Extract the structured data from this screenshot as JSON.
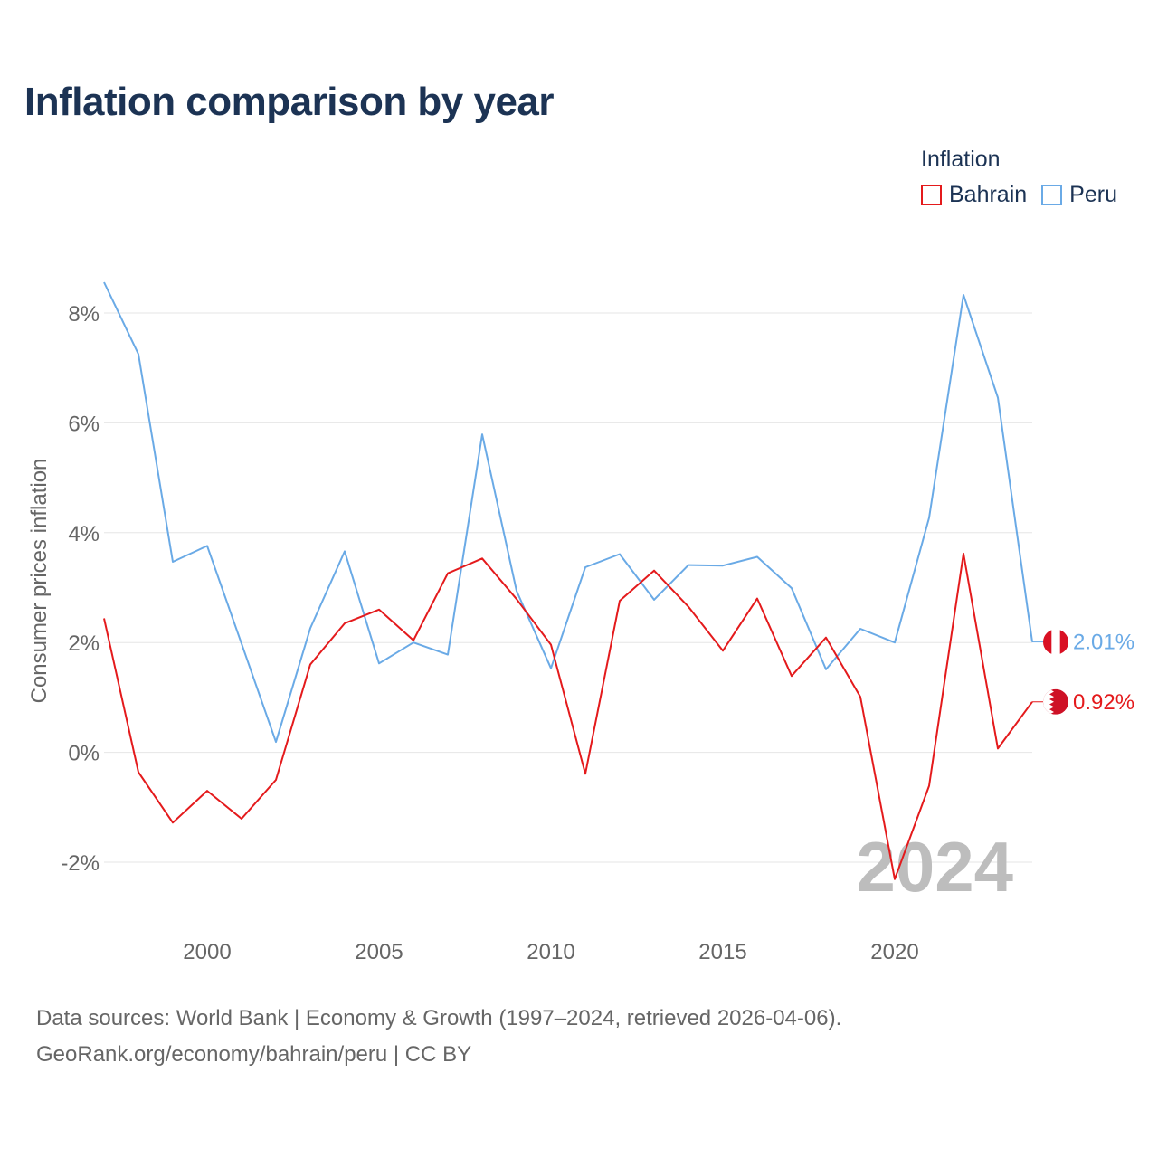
{
  "chart_data": {
    "type": "line",
    "title": "Inflation comparison by year",
    "legend_title": "Inflation",
    "ylabel": "Consumer prices inflation",
    "xlabel": "",
    "x": [
      1997,
      1998,
      1999,
      2000,
      2001,
      2002,
      2003,
      2004,
      2005,
      2006,
      2007,
      2008,
      2009,
      2010,
      2011,
      2012,
      2013,
      2014,
      2015,
      2016,
      2017,
      2018,
      2019,
      2020,
      2021,
      2022,
      2023,
      2024
    ],
    "xlim": [
      1997,
      2024
    ],
    "ylim": [
      -2.6,
      8.6
    ],
    "x_ticks": [
      2000,
      2005,
      2010,
      2015,
      2020
    ],
    "x_tick_labels": [
      "2000",
      "2005",
      "2010",
      "2015",
      "2020"
    ],
    "y_ticks": [
      -2,
      0,
      2,
      4,
      6,
      8
    ],
    "y_tick_labels": [
      "-2%",
      "0%",
      "2%",
      "4%",
      "6%",
      "8%"
    ],
    "grid": true,
    "legend_position": "top-right",
    "year_watermark": "2024",
    "series": [
      {
        "name": "Bahrain",
        "color": "#e41a1c",
        "end_label": "0.92%",
        "flag_icon": "bahrain-flag-icon",
        "values": [
          2.44,
          -0.36,
          -1.28,
          -0.7,
          -1.21,
          -0.5,
          1.6,
          2.35,
          2.6,
          2.04,
          3.26,
          3.53,
          2.79,
          1.96,
          -0.39,
          2.76,
          3.31,
          2.65,
          1.85,
          2.8,
          1.39,
          2.09,
          1.01,
          -2.31,
          -0.61,
          3.62,
          0.07,
          0.92
        ]
      },
      {
        "name": "Peru",
        "color": "#6aaae6",
        "end_label": "2.01%",
        "flag_icon": "peru-flag-icon",
        "values": [
          8.56,
          7.25,
          3.47,
          3.76,
          1.98,
          0.19,
          2.26,
          3.66,
          1.62,
          2.0,
          1.78,
          5.79,
          2.94,
          1.53,
          3.37,
          3.61,
          2.78,
          3.41,
          3.4,
          3.56,
          2.99,
          1.51,
          2.25,
          2.0,
          4.27,
          8.33,
          6.46,
          2.01
        ]
      }
    ]
  },
  "source": {
    "line1": "Data sources: World Bank | Economy & Growth (1997–2024, retrieved 2026-04-06).",
    "line2": "GeoRank.org/economy/bahrain/peru | CC BY"
  }
}
